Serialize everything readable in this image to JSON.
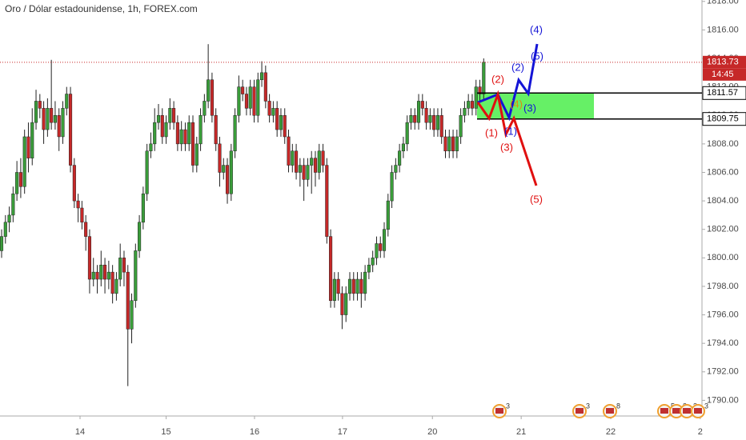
{
  "chart_data": {
    "type": "candlestick",
    "title": "Oro / Dólar estadounidense, 1h, FOREX.com",
    "up_color": "#3a9d3a",
    "down_color": "#c62828",
    "xlim": [
      -0.42,
      183.05
    ],
    "ylim": [
      1788.9,
      1818.1
    ],
    "yticks": [
      1790,
      1792,
      1794,
      1796,
      1798,
      1800,
      1802,
      1804,
      1806,
      1808,
      1810,
      1812,
      1814,
      1816,
      1818
    ],
    "ytick_labels": [
      "1790.00",
      "1792.00",
      "1794.00",
      "1796.00",
      "1798.00",
      "1800.00",
      "1802.00",
      "1804.00",
      "1806.00",
      "1808.00",
      "1810.00",
      "1812.00",
      "1814.00",
      "1816.00",
      "1818.00"
    ],
    "xticks": [
      {
        "value": 20.5,
        "label": "14"
      },
      {
        "value": 43,
        "label": "15"
      },
      {
        "value": 66.1,
        "label": "16"
      },
      {
        "value": 89.1,
        "label": "17"
      },
      {
        "value": 112.6,
        "label": "20"
      },
      {
        "value": 135.8,
        "label": "21"
      },
      {
        "value": 159.2,
        "label": "22"
      },
      {
        "value": 182.6,
        "label": "2"
      }
    ],
    "candles": [
      [
        1800.5,
        1802.0,
        1800.0,
        1801.5
      ],
      [
        1801.5,
        1803.0,
        1801.0,
        1802.5
      ],
      [
        1802.5,
        1803.6,
        1801.8,
        1803.0
      ],
      [
        1803.0,
        1805.0,
        1802.5,
        1804.5
      ],
      [
        1804.5,
        1806.8,
        1804.0,
        1806.0
      ],
      [
        1806.0,
        1807.0,
        1804.2,
        1805.0
      ],
      [
        1805.0,
        1809.0,
        1804.5,
        1808.5
      ],
      [
        1808.5,
        1809.5,
        1806.0,
        1807.0
      ],
      [
        1807.0,
        1810.5,
        1806.5,
        1809.5
      ],
      [
        1809.5,
        1811.8,
        1809.0,
        1811.0
      ],
      [
        1811.0,
        1811.5,
        1809.8,
        1810.5
      ],
      [
        1810.5,
        1811.0,
        1808.0,
        1809.0
      ],
      [
        1809.0,
        1811.2,
        1808.5,
        1810.5
      ],
      [
        1810.5,
        1813.9,
        1809.0,
        1809.5
      ],
      [
        1809.5,
        1811.0,
        1809.0,
        1810.0
      ],
      [
        1810.0,
        1810.5,
        1807.5,
        1808.5
      ],
      [
        1808.5,
        1811.0,
        1808.0,
        1810.5
      ],
      [
        1810.5,
        1812.0,
        1810.0,
        1811.5
      ],
      [
        1811.5,
        1812.0,
        1806.0,
        1806.5
      ],
      [
        1806.5,
        1807.0,
        1803.5,
        1804.0
      ],
      [
        1804.0,
        1804.5,
        1802.5,
        1803.5
      ],
      [
        1803.5,
        1804.0,
        1802.0,
        1802.5
      ],
      [
        1802.5,
        1803.0,
        1800.5,
        1801.5
      ],
      [
        1801.5,
        1802.0,
        1797.5,
        1798.5
      ],
      [
        1798.5,
        1800.0,
        1798.0,
        1799.0
      ],
      [
        1799.0,
        1799.5,
        1797.5,
        1798.5
      ],
      [
        1798.5,
        1800.5,
        1798.0,
        1799.5
      ],
      [
        1799.5,
        1800.0,
        1797.5,
        1798.5
      ],
      [
        1798.5,
        1799.8,
        1797.8,
        1799.0
      ],
      [
        1799.0,
        1799.5,
        1796.8,
        1797.5
      ],
      [
        1797.5,
        1799.0,
        1797.0,
        1798.5
      ],
      [
        1798.5,
        1801.0,
        1798.0,
        1800.0
      ],
      [
        1800.0,
        1800.5,
        1798.0,
        1799.0
      ],
      [
        1799.0,
        1799.5,
        1791.0,
        1795.0
      ],
      [
        1795.0,
        1797.5,
        1794.0,
        1797.0
      ],
      [
        1797.0,
        1801.0,
        1796.5,
        1800.5
      ],
      [
        1800.5,
        1803.0,
        1800.0,
        1802.5
      ],
      [
        1802.5,
        1805.0,
        1802.0,
        1804.5
      ],
      [
        1804.5,
        1808.0,
        1804.0,
        1807.5
      ],
      [
        1807.5,
        1808.8,
        1807.0,
        1808.0
      ],
      [
        1808.0,
        1810.5,
        1807.5,
        1809.5
      ],
      [
        1809.5,
        1810.8,
        1809.0,
        1810.0
      ],
      [
        1810.0,
        1810.5,
        1808.0,
        1808.5
      ],
      [
        1808.5,
        1810.0,
        1808.0,
        1809.5
      ],
      [
        1809.5,
        1811.2,
        1809.0,
        1810.5
      ],
      [
        1810.5,
        1811.0,
        1809.0,
        1809.5
      ],
      [
        1809.5,
        1810.0,
        1807.5,
        1808.0
      ],
      [
        1808.0,
        1809.6,
        1807.5,
        1809.0
      ],
      [
        1809.0,
        1809.5,
        1807.5,
        1808.0
      ],
      [
        1808.0,
        1810.0,
        1807.5,
        1809.5
      ],
      [
        1809.5,
        1810.0,
        1806.0,
        1806.5
      ],
      [
        1806.5,
        1808.5,
        1806.0,
        1808.0
      ],
      [
        1808.0,
        1810.5,
        1807.5,
        1810.0
      ],
      [
        1810.0,
        1811.5,
        1809.5,
        1811.0
      ],
      [
        1811.0,
        1815.0,
        1810.5,
        1812.5
      ],
      [
        1812.5,
        1813.0,
        1809.5,
        1810.0
      ],
      [
        1810.0,
        1810.5,
        1807.5,
        1808.0
      ],
      [
        1808.0,
        1808.5,
        1805.0,
        1806.0
      ],
      [
        1806.0,
        1807.0,
        1805.5,
        1806.5
      ],
      [
        1806.5,
        1807.0,
        1803.8,
        1804.5
      ],
      [
        1804.5,
        1808.0,
        1804.0,
        1807.5
      ],
      [
        1807.5,
        1810.5,
        1807.0,
        1810.0
      ],
      [
        1810.0,
        1812.8,
        1809.5,
        1812.0
      ],
      [
        1812.0,
        1812.5,
        1811.0,
        1811.5
      ],
      [
        1811.5,
        1812.0,
        1810.0,
        1810.5
      ],
      [
        1810.5,
        1812.5,
        1810.0,
        1812.0
      ],
      [
        1812.0,
        1812.5,
        1809.5,
        1810.0
      ],
      [
        1810.0,
        1813.0,
        1809.5,
        1812.5
      ],
      [
        1812.5,
        1813.8,
        1812.0,
        1813.0
      ],
      [
        1813.0,
        1813.5,
        1810.5,
        1811.0
      ],
      [
        1811.0,
        1811.5,
        1809.5,
        1810.0
      ],
      [
        1810.0,
        1811.0,
        1809.5,
        1810.5
      ],
      [
        1810.5,
        1811.0,
        1808.5,
        1809.0
      ],
      [
        1809.0,
        1810.5,
        1808.5,
        1810.0
      ],
      [
        1810.0,
        1810.5,
        1808.0,
        1808.5
      ],
      [
        1808.5,
        1809.0,
        1806.0,
        1806.5
      ],
      [
        1806.5,
        1808.0,
        1806.0,
        1807.5
      ],
      [
        1807.5,
        1808.0,
        1805.5,
        1806.0
      ],
      [
        1806.0,
        1807.0,
        1805.0,
        1806.5
      ],
      [
        1806.5,
        1807.0,
        1804.0,
        1805.5
      ],
      [
        1805.5,
        1807.0,
        1805.0,
        1806.5
      ],
      [
        1806.5,
        1807.5,
        1804.5,
        1807.0
      ],
      [
        1807.0,
        1807.5,
        1805.0,
        1806.0
      ],
      [
        1806.0,
        1808.0,
        1805.5,
        1807.5
      ],
      [
        1807.5,
        1808.0,
        1806.0,
        1806.5
      ],
      [
        1806.5,
        1807.0,
        1801.0,
        1801.5
      ],
      [
        1801.5,
        1802.0,
        1796.5,
        1797.0
      ],
      [
        1797.0,
        1799.0,
        1796.5,
        1798.5
      ],
      [
        1798.5,
        1799.0,
        1797.0,
        1797.5
      ],
      [
        1797.5,
        1798.0,
        1795.0,
        1796.0
      ],
      [
        1796.0,
        1798.0,
        1795.5,
        1797.5
      ],
      [
        1797.5,
        1799.0,
        1797.0,
        1798.5
      ],
      [
        1798.5,
        1799.0,
        1797.0,
        1797.5
      ],
      [
        1797.5,
        1799.0,
        1797.0,
        1798.5
      ],
      [
        1798.5,
        1799.0,
        1796.5,
        1797.5
      ],
      [
        1797.5,
        1799.5,
        1797.0,
        1799.0
      ],
      [
        1799.0,
        1800.0,
        1798.5,
        1799.5
      ],
      [
        1799.5,
        1800.5,
        1799.0,
        1800.0
      ],
      [
        1800.0,
        1801.5,
        1799.5,
        1801.0
      ],
      [
        1801.0,
        1801.5,
        1800.0,
        1800.5
      ],
      [
        1800.5,
        1802.5,
        1800.0,
        1802.0
      ],
      [
        1802.0,
        1804.5,
        1801.5,
        1804.0
      ],
      [
        1804.0,
        1806.5,
        1803.5,
        1806.0
      ],
      [
        1806.0,
        1807.0,
        1805.5,
        1806.5
      ],
      [
        1806.5,
        1808.0,
        1806.0,
        1807.5
      ],
      [
        1807.5,
        1808.5,
        1807.0,
        1808.0
      ],
      [
        1808.0,
        1810.0,
        1807.5,
        1809.5
      ],
      [
        1809.5,
        1810.5,
        1809.0,
        1810.0
      ],
      [
        1810.0,
        1810.5,
        1809.0,
        1809.5
      ],
      [
        1809.5,
        1811.5,
        1809.0,
        1811.0
      ],
      [
        1811.0,
        1811.5,
        1810.0,
        1810.5
      ],
      [
        1810.5,
        1811.0,
        1809.0,
        1809.5
      ],
      [
        1809.5,
        1810.5,
        1809.0,
        1810.0
      ],
      [
        1810.0,
        1810.5,
        1808.5,
        1809.0
      ],
      [
        1809.0,
        1810.5,
        1808.5,
        1810.0
      ],
      [
        1810.0,
        1810.5,
        1808.0,
        1808.5
      ],
      [
        1808.5,
        1809.0,
        1807.0,
        1807.5
      ],
      [
        1807.5,
        1809.0,
        1807.0,
        1808.5
      ],
      [
        1808.5,
        1809.0,
        1807.0,
        1807.5
      ],
      [
        1807.5,
        1809.0,
        1807.0,
        1808.5
      ],
      [
        1808.5,
        1810.5,
        1808.0,
        1810.0
      ],
      [
        1810.0,
        1811.0,
        1809.5,
        1810.5
      ],
      [
        1810.5,
        1811.5,
        1810.0,
        1811.0
      ],
      [
        1811.0,
        1811.5,
        1810.0,
        1810.5
      ],
      [
        1810.5,
        1812.5,
        1810.0,
        1812.0
      ],
      [
        1812.0,
        1812.5,
        1811.0,
        1811.5
      ],
      [
        1811.5,
        1814.0,
        1811.0,
        1813.73
      ]
    ],
    "last_price": 1813.73,
    "countdown": "14:45",
    "zone": [
      1811.57,
      1809.75
    ],
    "zone_color": "#66f066",
    "bull_color": "#1414d6",
    "bear_color": "#e01010",
    "bull_labels": [
      "(1)",
      "(2)",
      "(3)",
      "(4)",
      "(5)"
    ],
    "bear_labels": [
      "(1)",
      "(2)",
      "(3)",
      "(4)",
      "(5)"
    ],
    "events": [
      3,
      3,
      8,
      5,
      3,
      3,
      3
    ]
  }
}
